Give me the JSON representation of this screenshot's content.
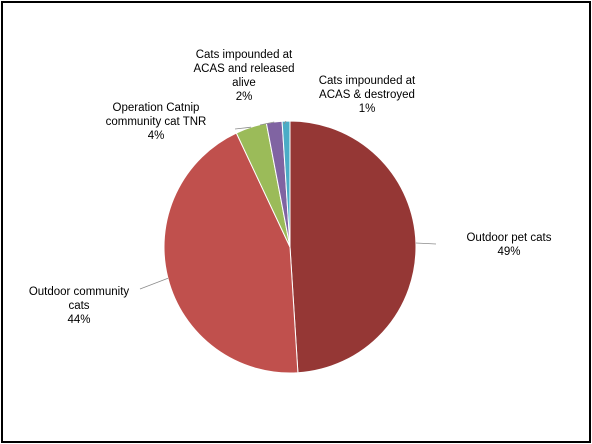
{
  "chart_data": {
    "type": "pie",
    "title": "",
    "legend": "none",
    "start_angle_deg": 0,
    "direction": "clockwise",
    "slices": [
      {
        "name": "Outdoor pet cats",
        "value": 49,
        "label_lines": [
          "Outdoor pet cats",
          "49%"
        ],
        "color": "#953735"
      },
      {
        "name": "Outdoor community cats",
        "value": 44,
        "label_lines": [
          "Outdoor community",
          "cats",
          "44%"
        ],
        "color": "#C0504D"
      },
      {
        "name": "Operation Catnip community cat TNR",
        "value": 4,
        "label_lines": [
          "Operation Catnip",
          "community cat TNR",
          "4%"
        ],
        "color": "#9BBB59"
      },
      {
        "name": "Cats impounded at ACAS and released alive",
        "value": 2,
        "label_lines": [
          "Cats impounded at",
          "ACAS and released",
          "alive",
          "2%"
        ],
        "color": "#8064A2"
      },
      {
        "name": "Cats impounded at ACAS & destroyed",
        "value": 1,
        "label_lines": [
          "Cats impounded at",
          "ACAS & destroyed",
          "1%"
        ],
        "color": "#4BACC6"
      }
    ]
  }
}
